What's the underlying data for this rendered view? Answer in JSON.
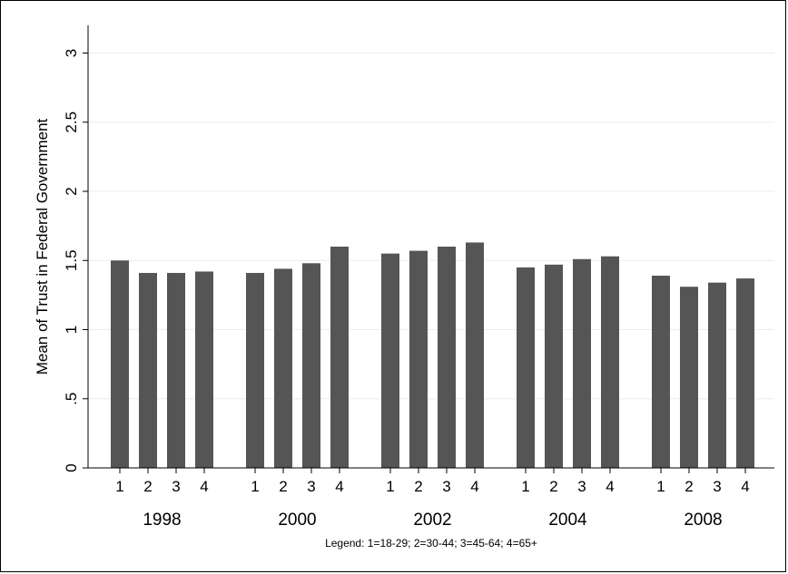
{
  "chart_data": {
    "type": "bar",
    "ylabel": "Mean of Trust in Federal Government",
    "ylim": [
      0,
      3.2
    ],
    "yticks": [
      {
        "value": 0,
        "label": "0"
      },
      {
        "value": 0.5,
        "label": ".5"
      },
      {
        "value": 1,
        "label": "1"
      },
      {
        "value": 1.5,
        "label": "1.5"
      },
      {
        "value": 2,
        "label": "2"
      },
      {
        "value": 2.5,
        "label": "2.5"
      },
      {
        "value": 3,
        "label": "3"
      }
    ],
    "grid": true,
    "bar_color": "#555555",
    "grid_color": "#e8eef2",
    "groups": [
      {
        "label": "1998",
        "categories": [
          "1",
          "2",
          "3",
          "4"
        ],
        "values": [
          1.5,
          1.41,
          1.41,
          1.42
        ]
      },
      {
        "label": "2000",
        "categories": [
          "1",
          "2",
          "3",
          "4"
        ],
        "values": [
          1.41,
          1.44,
          1.48,
          1.6
        ]
      },
      {
        "label": "2002",
        "categories": [
          "1",
          "2",
          "3",
          "4"
        ],
        "values": [
          1.55,
          1.57,
          1.6,
          1.63
        ]
      },
      {
        "label": "2004",
        "categories": [
          "1",
          "2",
          "3",
          "4"
        ],
        "values": [
          1.45,
          1.47,
          1.51,
          1.53
        ]
      },
      {
        "label": "2008",
        "categories": [
          "1",
          "2",
          "3",
          "4"
        ],
        "values": [
          1.39,
          1.31,
          1.34,
          1.37
        ]
      }
    ],
    "note": "Legend: 1=18-29; 2=30-44; 3=45-64; 4=65+"
  }
}
